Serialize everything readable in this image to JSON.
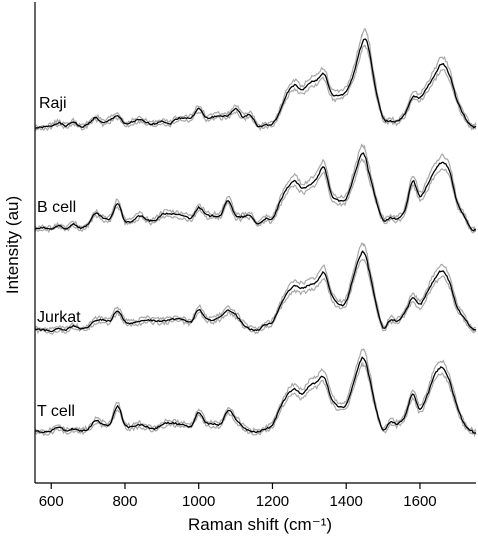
{
  "chart_data": {
    "type": "line",
    "xlabel": "Raman shift (cm⁻¹)",
    "ylabel": "Intensity (au)",
    "xlim": [
      556,
      1752
    ],
    "x_ticks": [
      "600",
      "800",
      "1000",
      "1200",
      "1400",
      "1600"
    ],
    "x_tick_values": [
      600,
      800,
      1000,
      1200,
      1400,
      1600
    ],
    "y_ticks": "none",
    "grid": false,
    "colors": {
      "mean": "#000000",
      "spread": "#a8a8a8",
      "axis": "#000000"
    },
    "note_units": "spectra are vertically offset; intensities in arbitrary units (0 = local baseline, 100 = tallest peak of the top spectrum)",
    "x": [
      556,
      580,
      600,
      620,
      640,
      660,
      680,
      700,
      720,
      740,
      760,
      780,
      800,
      820,
      840,
      860,
      880,
      900,
      920,
      940,
      960,
      980,
      1000,
      1020,
      1040,
      1060,
      1080,
      1100,
      1120,
      1140,
      1160,
      1180,
      1200,
      1220,
      1240,
      1260,
      1280,
      1300,
      1320,
      1340,
      1360,
      1380,
      1400,
      1420,
      1440,
      1450,
      1460,
      1480,
      1500,
      1520,
      1540,
      1560,
      1580,
      1600,
      1620,
      1640,
      1660,
      1680,
      1700,
      1720,
      1740,
      1752
    ],
    "series": [
      {
        "name": "Raji",
        "offset": 0,
        "values": [
          0,
          1,
          2,
          5,
          2,
          6,
          1,
          4,
          10,
          5,
          8,
          12,
          4,
          6,
          8,
          5,
          4,
          7,
          4,
          9,
          10,
          10,
          19,
          10,
          11,
          12,
          12,
          19,
          11,
          13,
          2,
          3,
          4,
          16,
          34,
          42,
          37,
          44,
          47,
          53,
          34,
          32,
          36,
          53,
          79,
          87,
          79,
          38,
          10,
          7,
          7,
          14,
          30,
          30,
          40,
          52,
          63,
          52,
          28,
          12,
          2,
          1
        ]
      },
      {
        "name": "B cell",
        "offset": -100,
        "values": [
          1,
          2,
          1,
          4,
          1,
          6,
          2,
          6,
          16,
          12,
          11,
          26,
          9,
          9,
          14,
          10,
          9,
          15,
          16,
          15,
          14,
          12,
          22,
          15,
          14,
          15,
          29,
          14,
          13,
          14,
          6,
          11,
          11,
          27,
          41,
          48,
          41,
          44,
          51,
          61,
          35,
          29,
          31,
          51,
          73,
          73,
          58,
          31,
          10,
          12,
          11,
          20,
          48,
          33,
          44,
          58,
          66,
          58,
          28,
          14,
          1,
          0
        ]
      },
      {
        "name": "Jurkat",
        "offset": -200,
        "values": [
          3,
          2,
          1,
          3,
          2,
          6,
          3,
          5,
          11,
          12,
          11,
          21,
          10,
          9,
          10,
          12,
          11,
          11,
          12,
          13,
          12,
          10,
          22,
          13,
          12,
          15,
          21,
          17,
          8,
          3,
          2,
          7,
          10,
          25,
          38,
          45,
          43,
          46,
          49,
          58,
          37,
          27,
          30,
          55,
          76,
          77,
          63,
          29,
          4,
          12,
          11,
          20,
          33,
          27,
          39,
          52,
          60,
          49,
          25,
          14,
          4,
          2
        ]
      },
      {
        "name": "T cell",
        "offset": -300,
        "values": [
          3,
          2,
          3,
          7,
          3,
          5,
          3,
          5,
          13,
          10,
          10,
          27,
          9,
          7,
          9,
          7,
          5,
          9,
          11,
          10,
          9,
          8,
          21,
          11,
          10,
          10,
          23,
          15,
          7,
          3,
          2,
          5,
          9,
          25,
          38,
          44,
          39,
          47,
          51,
          56,
          35,
          27,
          29,
          50,
          72,
          73,
          60,
          26,
          4,
          12,
          10,
          18,
          39,
          24,
          38,
          58,
          65,
          52,
          28,
          10,
          3,
          1
        ]
      }
    ]
  }
}
